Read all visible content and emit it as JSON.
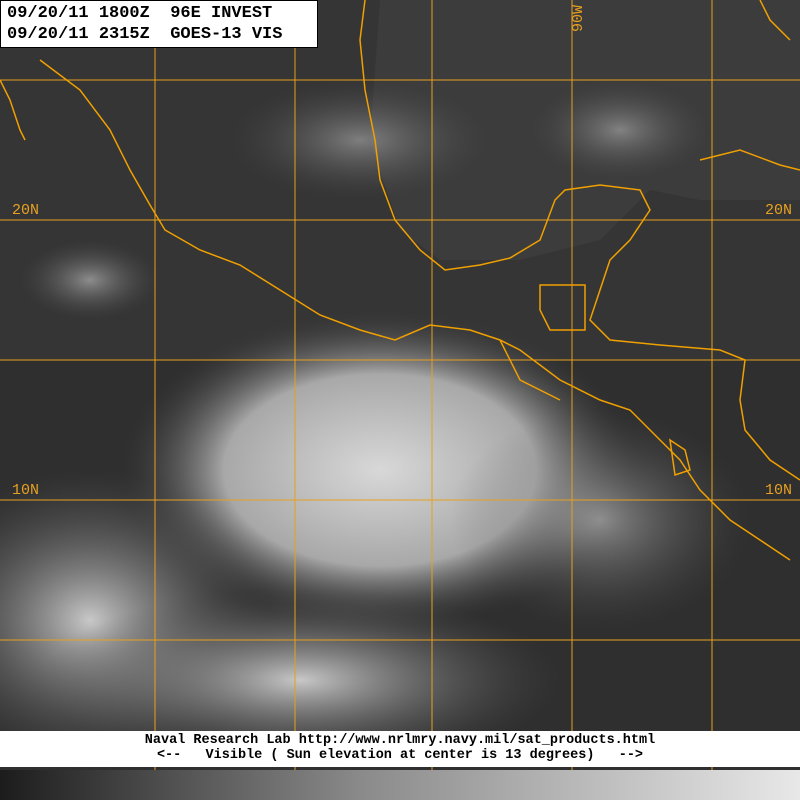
{
  "header": {
    "line1": "09/20/11 1800Z  96E INVEST",
    "line2": "09/20/11 2315Z  GOES-13 VIS"
  },
  "grid_labels": {
    "lon_top": "90W",
    "lat_20_left": "20N",
    "lat_20_right": "20N",
    "lat_10_left": "10N",
    "lat_10_right": "10N"
  },
  "footer": {
    "line1": "Naval Research Lab http://www.nrlmry.navy.mil/sat_products.html",
    "line2": "<--   Visible ( Sun elevation at center is 13 degrees)   -->"
  },
  "colors": {
    "grid": "#e8a020",
    "coast": "#f0a000"
  }
}
